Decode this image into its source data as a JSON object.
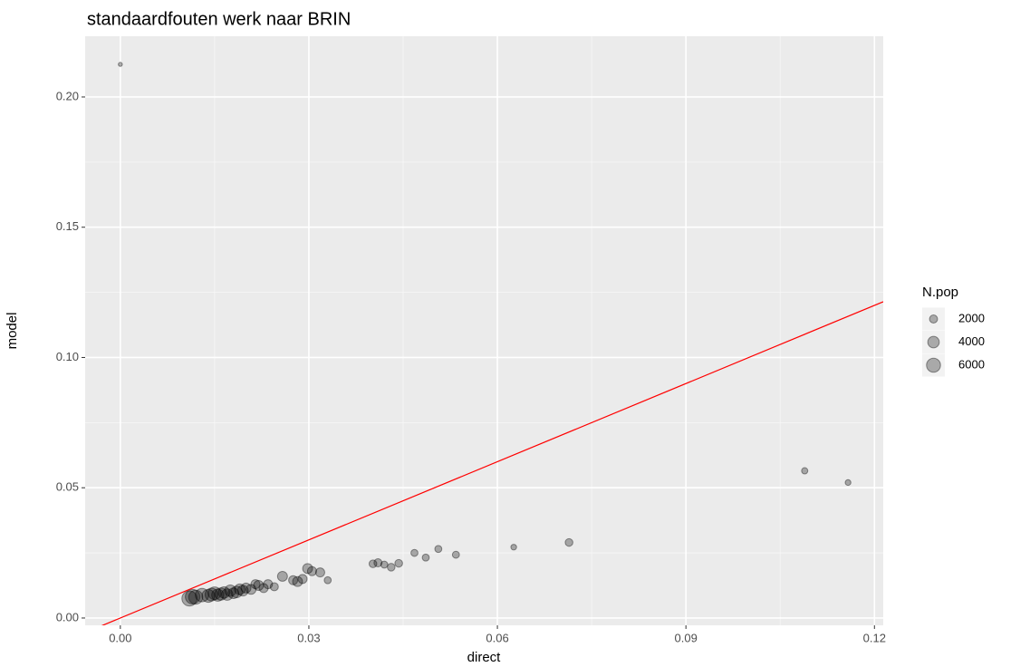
{
  "chart_data": {
    "type": "scatter",
    "title": "standaardfouten werk naar BRIN",
    "x_label": "direct",
    "y_label": "model",
    "xlim": [
      -0.0056,
      0.1214
    ],
    "ylim": [
      -0.0028,
      0.2233
    ],
    "xticks": [
      {
        "value": 0,
        "label": "0.00"
      },
      0.03,
      0.06,
      0.09,
      0.12
    ],
    "yticks": [
      {
        "value": 0,
        "label": "0.00"
      },
      0.05,
      {
        "value": 0.1,
        "label": "0.10"
      },
      0.15,
      {
        "value": 0.2,
        "label": "0.20"
      }
    ],
    "grid": true,
    "color": "#000000",
    "alpha": 0.3,
    "abline": {
      "slope": 1,
      "intercept": 0,
      "color": "#ff0000"
    },
    "legend": {
      "title": "N.pop",
      "position": "right",
      "sizes": [
        2000,
        4000,
        6000
      ]
    },
    "x": [
      0,
      0.1089,
      0.1158,
      0.0714,
      0.0626,
      0.0534,
      0.0506,
      0.0486,
      0.0468,
      0.0443,
      0.0431,
      0.042,
      0.041,
      0.0402,
      0.033,
      0.0318,
      0.0305,
      0.0298,
      0.029,
      0.0282,
      0.0275,
      0.0258,
      0.0245,
      0.0235,
      0.0228,
      0.022,
      0.0215,
      0.0208,
      0.02,
      0.0195,
      0.019,
      0.0185,
      0.018,
      0.0175,
      0.017,
      0.0165,
      0.016,
      0.0155,
      0.015,
      0.0145,
      0.014,
      0.013,
      0.012,
      0.0115,
      0.011
    ],
    "y": [
      0.2125,
      0.0565,
      0.052,
      0.029,
      0.0272,
      0.0243,
      0.0265,
      0.0232,
      0.025,
      0.021,
      0.0195,
      0.0205,
      0.0212,
      0.0208,
      0.0145,
      0.0175,
      0.018,
      0.019,
      0.015,
      0.014,
      0.0145,
      0.016,
      0.012,
      0.013,
      0.0115,
      0.0125,
      0.013,
      0.011,
      0.0115,
      0.0105,
      0.011,
      0.01,
      0.0095,
      0.0105,
      0.009,
      0.0098,
      0.0092,
      0.0088,
      0.0095,
      0.009,
      0.0085,
      0.0088,
      0.008,
      0.0082,
      0.0075
    ],
    "size": [
      500,
      1200,
      1000,
      1800,
      1000,
      1500,
      1500,
      1500,
      1500,
      1800,
      1800,
      1500,
      2000,
      1800,
      1500,
      2500,
      2500,
      3000,
      2500,
      3000,
      2500,
      3000,
      2000,
      2500,
      2500,
      3000,
      2500,
      3000,
      3000,
      3500,
      3500,
      4000,
      3500,
      4000,
      4000,
      4000,
      4500,
      4500,
      5000,
      5000,
      5000,
      5500,
      6000,
      6500,
      7000
    ]
  }
}
